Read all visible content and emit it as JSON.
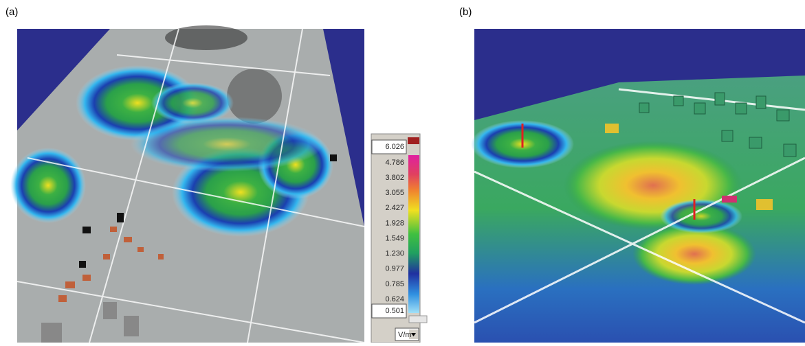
{
  "panel_a": {
    "label": "(a)",
    "colorbar": {
      "labels": [
        "6.026",
        "4.786",
        "3.802",
        "3.055",
        "2.427",
        "1.928",
        "1.549",
        "1.230",
        "0.977",
        "0.785",
        "0.624",
        "0.501"
      ],
      "unit": "V/m"
    }
  },
  "panel_b": {
    "label": "(b)"
  }
}
